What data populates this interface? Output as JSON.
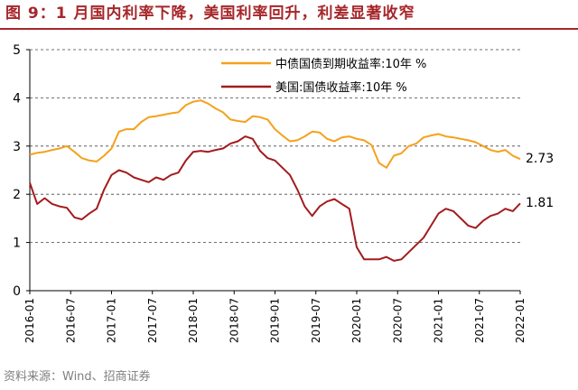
{
  "figure": {
    "title": "图 9：1 月国内利率下降，美国利率回升，利差显著收窄",
    "source": "资料来源：Wind、招商证券"
  },
  "chart_data": {
    "type": "line",
    "x_tick_labels": [
      "2016-01",
      "2016-07",
      "2017-01",
      "2017-07",
      "2018-01",
      "2018-07",
      "2019-01",
      "2019-07",
      "2020-01",
      "2020-07",
      "2021-01",
      "2021-07",
      "2022-01"
    ],
    "ylim": [
      0,
      5
    ],
    "y_ticks": [
      0,
      1,
      2,
      3,
      4,
      5
    ],
    "grid": "horizontal dashed",
    "legend_position": "top-right",
    "series": [
      {
        "name": "中债国债到期收益率:10年 %",
        "color": "#f5a11c",
        "end_label": "2.73",
        "values": [
          2.82,
          2.86,
          2.88,
          2.92,
          2.95,
          3.0,
          2.88,
          2.75,
          2.7,
          2.68,
          2.8,
          2.95,
          3.3,
          3.35,
          3.35,
          3.5,
          3.6,
          3.62,
          3.65,
          3.68,
          3.7,
          3.85,
          3.92,
          3.95,
          3.88,
          3.78,
          3.7,
          3.55,
          3.52,
          3.5,
          3.62,
          3.6,
          3.55,
          3.35,
          3.22,
          3.1,
          3.12,
          3.2,
          3.3,
          3.28,
          3.15,
          3.1,
          3.18,
          3.2,
          3.15,
          3.12,
          3.02,
          2.65,
          2.55,
          2.8,
          2.85,
          3.0,
          3.05,
          3.18,
          3.22,
          3.25,
          3.2,
          3.18,
          3.15,
          3.12,
          3.08,
          3.0,
          2.92,
          2.88,
          2.92,
          2.8,
          2.73
        ]
      },
      {
        "name": "美国:国债收益率:10年 %",
        "color": "#a31b1e",
        "end_label": "1.81",
        "values": [
          2.24,
          1.8,
          1.92,
          1.8,
          1.75,
          1.72,
          1.52,
          1.48,
          1.6,
          1.7,
          2.1,
          2.4,
          2.5,
          2.45,
          2.35,
          2.3,
          2.25,
          2.35,
          2.3,
          2.4,
          2.45,
          2.7,
          2.88,
          2.9,
          2.88,
          2.92,
          2.95,
          3.05,
          3.1,
          3.2,
          3.15,
          2.9,
          2.75,
          2.7,
          2.55,
          2.4,
          2.1,
          1.75,
          1.55,
          1.75,
          1.85,
          1.9,
          1.8,
          1.7,
          0.9,
          0.65,
          0.65,
          0.65,
          0.7,
          0.62,
          0.65,
          0.8,
          0.95,
          1.1,
          1.35,
          1.6,
          1.7,
          1.65,
          1.5,
          1.35,
          1.3,
          1.45,
          1.55,
          1.6,
          1.7,
          1.65,
          1.81
        ]
      }
    ]
  }
}
